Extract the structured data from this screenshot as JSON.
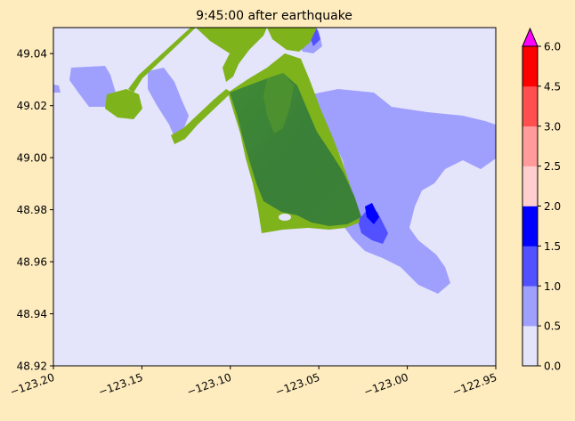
{
  "title": "9:45:00 after earthquake",
  "map": {
    "x_ticks": [
      "−123.20",
      "−123.15",
      "−123.10",
      "−123.05",
      "−123.00",
      "−122.95"
    ],
    "y_ticks": [
      "48.92",
      "48.94",
      "48.96",
      "48.98",
      "49.00",
      "49.02",
      "49.04"
    ],
    "xlim": [
      -123.2,
      -122.95
    ],
    "ylim": [
      48.92,
      49.05
    ],
    "background_color": "#e4e4fb"
  },
  "colorbar": {
    "tick_labels": [
      "0.0",
      "0.5",
      "1.0",
      "1.5",
      "2.0",
      "2.5",
      "3.0",
      "4.5",
      "6.0"
    ],
    "bins": [
      {
        "from": 0.0,
        "to": 0.5,
        "color": "#e4e4fb"
      },
      {
        "from": 0.5,
        "to": 1.0,
        "color": "#9f9ffd"
      },
      {
        "from": 1.0,
        "to": 1.5,
        "color": "#5151ff"
      },
      {
        "from": 1.5,
        "to": 2.0,
        "color": "#0000ff"
      },
      {
        "from": 2.0,
        "to": 2.5,
        "color": "#ffcfcf"
      },
      {
        "from": 2.5,
        "to": 3.0,
        "color": "#ff9b9b"
      },
      {
        "from": 3.0,
        "to": 4.5,
        "color": "#ff4f4f"
      },
      {
        "from": 4.5,
        "to": 6.0,
        "color": "#ff0000"
      }
    ],
    "extend_max_color": "#ff00ff"
  }
}
